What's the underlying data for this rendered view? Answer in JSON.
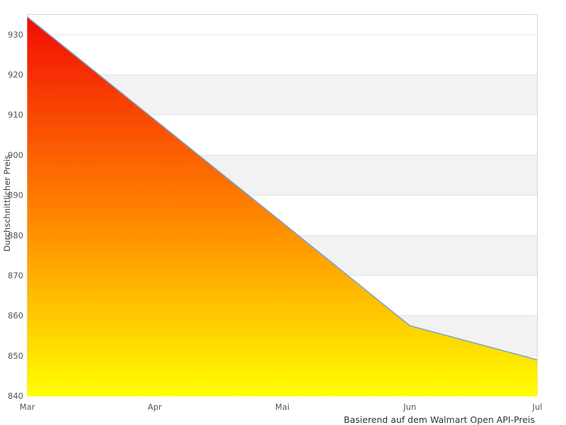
{
  "chart_data": {
    "type": "area",
    "title": "",
    "categories": [
      "Mar",
      "Apr",
      "Mai",
      "Jun",
      "Jul"
    ],
    "values": [
      934.4,
      908.8,
      883.2,
      857.5,
      849.0
    ],
    "xlabel": "",
    "ylabel": "Durchschnittlicher Preis",
    "caption": "Basierend auf dem Walmart Open API-Preis",
    "yticks": [
      840,
      850,
      860,
      870,
      880,
      890,
      900,
      910,
      920,
      930
    ],
    "ylim": [
      840,
      935
    ],
    "grid": true,
    "legend": "none",
    "bands": [
      [
        850,
        860
      ],
      [
        870,
        880
      ],
      [
        890,
        900
      ],
      [
        910,
        920
      ]
    ],
    "colors": {
      "line": "#7aa7d0",
      "gradient_top": "#f20c05",
      "gradient_mid": "#ff8000",
      "gradient_bottom": "#ffff00",
      "band": "#f2f2f2",
      "gridline": "#e4e4e4",
      "border": "#d8d8d8",
      "tick_text": "#555555",
      "axis_title_text": "#3d3d3d",
      "caption_text": "#333333",
      "background": "#ffffff"
    }
  }
}
